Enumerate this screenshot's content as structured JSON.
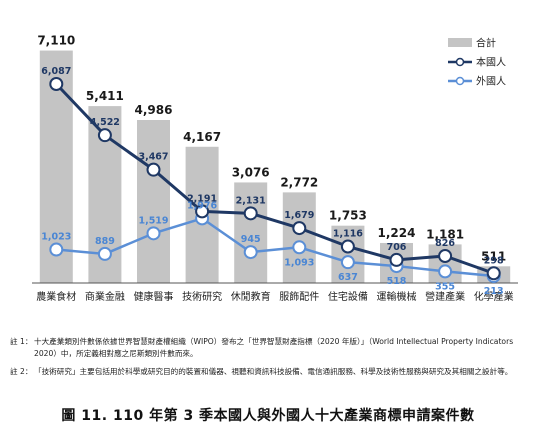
{
  "chart_data": {
    "type": "bar",
    "categories": [
      "農業食材",
      "商業金融",
      "健康醫事",
      "技術研究",
      "休閒教育",
      "服飾配件",
      "住宅設備",
      "運輸機械",
      "營建產業",
      "化學產業"
    ],
    "ylim": [
      0,
      7800
    ],
    "grid": false,
    "legend_position": "top-right",
    "series": [
      {
        "name": "合計",
        "kind": "bar",
        "color": "#c4c4c4",
        "label_color": "#1a1a1a",
        "values": [
          7110,
          5411,
          4986,
          4167,
          3076,
          2772,
          1753,
          1224,
          1181,
          511
        ],
        "labels": [
          "7,110",
          "5,411",
          "4,986",
          "4,167",
          "3,076",
          "2,772",
          "1,753",
          "1,224",
          "1,181",
          "511"
        ]
      },
      {
        "name": "本國人",
        "kind": "line",
        "color": "#1f3864",
        "label_color": "#1f3864",
        "values": [
          6087,
          4522,
          3467,
          2191,
          2131,
          1679,
          1116,
          706,
          826,
          298
        ],
        "labels": [
          "6,087",
          "4,522",
          "3,467",
          "2,191",
          "2,131",
          "1,679",
          "1,116",
          "706",
          "826",
          "298"
        ]
      },
      {
        "name": "外國人",
        "kind": "line",
        "color": "#5b8fd6",
        "label_color": "#4a86d4",
        "values": [
          1023,
          889,
          1519,
          1976,
          945,
          1093,
          637,
          518,
          355,
          213
        ],
        "labels": [
          "1,023",
          "889",
          "1,519",
          "1,976",
          "945",
          "1,093",
          "637",
          "518",
          "355",
          "213"
        ]
      }
    ]
  },
  "notes": [
    {
      "label": "註 1：",
      "text": "十大產業類別件數係依據世界智慧財產權組織（WIPO）發布之「世界智慧財產指標（2020 年版）」（World Intellectual Property Indicators 2020）中，所定義相對應之尼斯類別件數而來。"
    },
    {
      "label": "註 2：",
      "text": "「技術研究」主要包括用於科學或研究目的的裝置和儀器、視聽和資訊科技設備、電信通訊服務、科學及技術性服務與研究及其相關之設計等。"
    }
  ],
  "caption": "圖 11. 110 年第 3 季本國人與外國人十大產業商標申請案件數"
}
